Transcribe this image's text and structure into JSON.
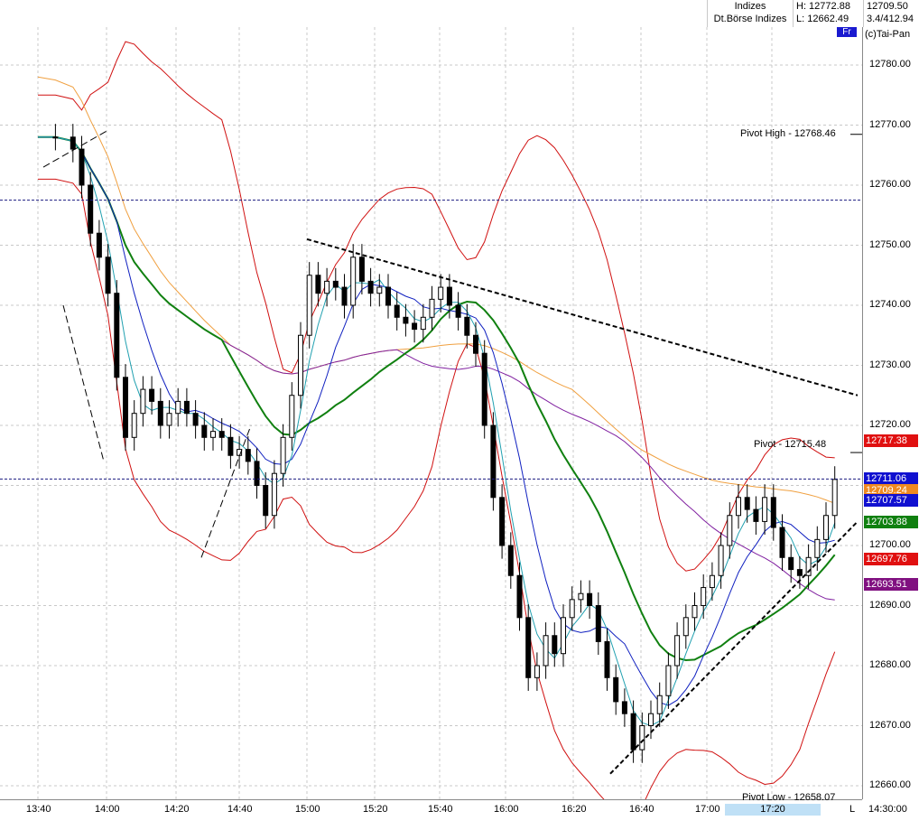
{
  "header": {
    "instrument": "Indizes",
    "exchange": "Dt.Börse Indizes",
    "high": "H: 12772.88",
    "low": "L: 12662.49",
    "last": "12709.50",
    "change": "3.4/412.94",
    "badge": "Fr",
    "copyright": "(c)Tai-Pan"
  },
  "chart_data": {
    "type": "candlestick",
    "title": "",
    "xlabel": "",
    "ylabel": "",
    "ylim": [
      12657,
      12787
    ],
    "grid": true,
    "x_ticks": [
      "13:40",
      "14:00",
      "14:20",
      "14:40",
      "15:00",
      "15:20",
      "15:40",
      "16:00",
      "16:20",
      "16:40",
      "17:00",
      "17:20"
    ],
    "y_ticks": [
      12660,
      12670,
      12680,
      12690,
      12700,
      12710,
      12720,
      12730,
      12740,
      12750,
      12760,
      12770,
      12780
    ],
    "close_path": [
      [
        0,
        12768
      ],
      [
        2,
        12768
      ],
      [
        4,
        12766
      ],
      [
        5,
        12760
      ],
      [
        6,
        12752
      ],
      [
        7,
        12748
      ],
      [
        8,
        12742
      ],
      [
        9,
        12728
      ],
      [
        10,
        12718
      ],
      [
        11,
        12722
      ],
      [
        12,
        12726
      ],
      [
        13,
        12724
      ],
      [
        14,
        12720
      ],
      [
        15,
        12722
      ],
      [
        16,
        12724
      ],
      [
        17,
        12722
      ],
      [
        18,
        12720
      ],
      [
        19,
        12718
      ],
      [
        20,
        12719
      ],
      [
        21,
        12718
      ],
      [
        22,
        12715
      ],
      [
        23,
        12716
      ],
      [
        24,
        12714
      ],
      [
        25,
        12710
      ],
      [
        26,
        12705
      ],
      [
        27,
        12712
      ],
      [
        28,
        12718
      ],
      [
        29,
        12725
      ],
      [
        30,
        12735
      ],
      [
        31,
        12745
      ],
      [
        32,
        12742
      ],
      [
        33,
        12744
      ],
      [
        34,
        12743
      ],
      [
        35,
        12740
      ],
      [
        36,
        12748
      ],
      [
        37,
        12744
      ],
      [
        38,
        12742
      ],
      [
        39,
        12743
      ],
      [
        40,
        12740
      ],
      [
        41,
        12738
      ],
      [
        42,
        12737
      ],
      [
        43,
        12736
      ],
      [
        44,
        12738
      ],
      [
        45,
        12741
      ],
      [
        46,
        12743
      ],
      [
        47,
        12740
      ],
      [
        48,
        12738
      ],
      [
        49,
        12735
      ],
      [
        50,
        12732
      ],
      [
        51,
        12720
      ],
      [
        52,
        12708
      ],
      [
        53,
        12700
      ],
      [
        54,
        12695
      ],
      [
        55,
        12688
      ],
      [
        56,
        12678
      ],
      [
        57,
        12680
      ],
      [
        58,
        12685
      ],
      [
        59,
        12682
      ],
      [
        60,
        12688
      ],
      [
        61,
        12691
      ],
      [
        62,
        12692
      ],
      [
        63,
        12690
      ],
      [
        64,
        12684
      ],
      [
        65,
        12678
      ],
      [
        66,
        12674
      ],
      [
        67,
        12672
      ],
      [
        68,
        12666
      ],
      [
        69,
        12670
      ],
      [
        70,
        12672
      ],
      [
        71,
        12675
      ],
      [
        72,
        12680
      ],
      [
        73,
        12685
      ],
      [
        74,
        12688
      ],
      [
        75,
        12690
      ],
      [
        76,
        12693
      ],
      [
        77,
        12695
      ],
      [
        78,
        12700
      ],
      [
        79,
        12705
      ],
      [
        80,
        12708
      ],
      [
        81,
        12706
      ],
      [
        82,
        12704
      ],
      [
        83,
        12708
      ],
      [
        84,
        12703
      ],
      [
        85,
        12698
      ],
      [
        86,
        12696
      ],
      [
        87,
        12695
      ],
      [
        88,
        12698
      ],
      [
        89,
        12701
      ],
      [
        90,
        12705
      ],
      [
        91,
        12711
      ]
    ],
    "indicators": {
      "pivot_high": 12768.46,
      "pivot": 12715.48,
      "pivot_low": 12658.07,
      "upper_resistance": 12757.5
    },
    "price_tags": [
      {
        "label": "12717.38",
        "value": 12717.38,
        "color": "#e01010",
        "text_color": "#ffffff"
      },
      {
        "label": "12711.06",
        "value": 12711.06,
        "color": "#1010d0",
        "text_color": "#ffffff"
      },
      {
        "label": "12709.24",
        "value": 12709.24,
        "color": "#f08a20",
        "text_color": "#ffffff"
      },
      {
        "label": "12707.57",
        "value": 12707.57,
        "color": "#1010d0",
        "text_color": "#ffffff"
      },
      {
        "label": "12703.88",
        "value": 12703.88,
        "color": "#108010",
        "text_color": "#ffffff"
      },
      {
        "label": "12697.76",
        "value": 12697.76,
        "color": "#e01010",
        "text_color": "#ffffff"
      },
      {
        "label": "12693.51",
        "value": 12693.51,
        "color": "#801080",
        "text_color": "#ffffff"
      }
    ],
    "annotations": {
      "pivot_high_label": "Pivot High - 12768.46",
      "pivot_label": "Pivot - 12715.48",
      "pivot_low_label": "Pivot Low - 12658.07"
    }
  },
  "time_axis": {
    "cursor_time": "17:20",
    "clock": "14:30:00",
    "l_label": "L"
  }
}
